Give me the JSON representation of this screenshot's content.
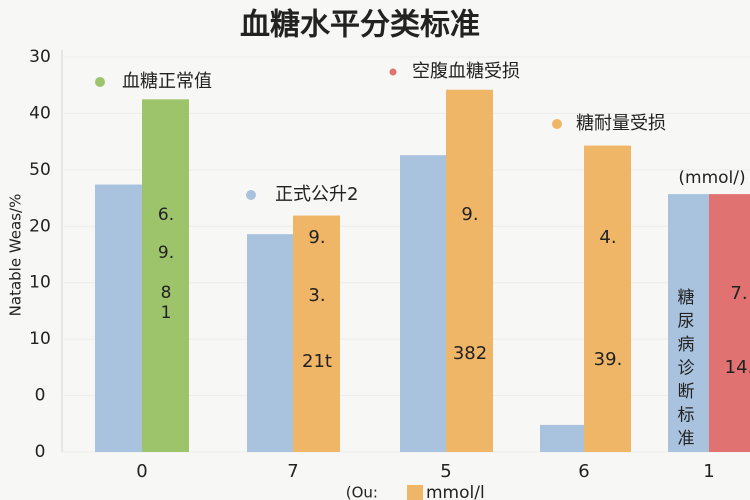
{
  "chart_data": {
    "type": "bar",
    "title": "血糖水平分类标准",
    "y_axis_title": "Natable Weas/%",
    "y_axis_labels": [
      "30",
      "40",
      "50",
      "20",
      "10",
      "10",
      "0",
      "0"
    ],
    "unit_note": "(mmol/)",
    "footer_prefix": "(Ou:",
    "footer_unit": "mmol/l",
    "categories": [
      "0",
      "7",
      "5",
      "6",
      "1"
    ],
    "ylim": [
      0,
      70
    ],
    "series": [
      {
        "color": "#a9c2de",
        "values": [
          47.4,
          38.6,
          52.6,
          4.8,
          45.7
        ]
      },
      {
        "colors": [
          "#9dc46b",
          "#f0b667",
          "#f0b667",
          "#f0b667",
          "#e07272"
        ],
        "values": [
          62.5,
          41.9,
          64.2,
          54.3,
          45.7
        ]
      }
    ],
    "legend": [
      {
        "name": "血糖正常值",
        "color": "#9dc46b"
      },
      {
        "name": "空腹血糖受损",
        "color": "#e07272"
      },
      {
        "name": "糖耐量受损",
        "color": "#f0b667"
      },
      {
        "name": "正式公升2",
        "color": "#a9c2de"
      }
    ],
    "bar_labels": [
      [
        "6.",
        "9.",
        "8",
        "1"
      ],
      [
        "9.",
        "3.",
        "21t"
      ],
      [
        "9.",
        "382"
      ],
      [
        "4.",
        "39."
      ],
      [
        "7.",
        "14."
      ]
    ],
    "vertical_label": [
      "糖",
      "尿",
      "病",
      "诊",
      "断",
      "标",
      "准"
    ]
  }
}
